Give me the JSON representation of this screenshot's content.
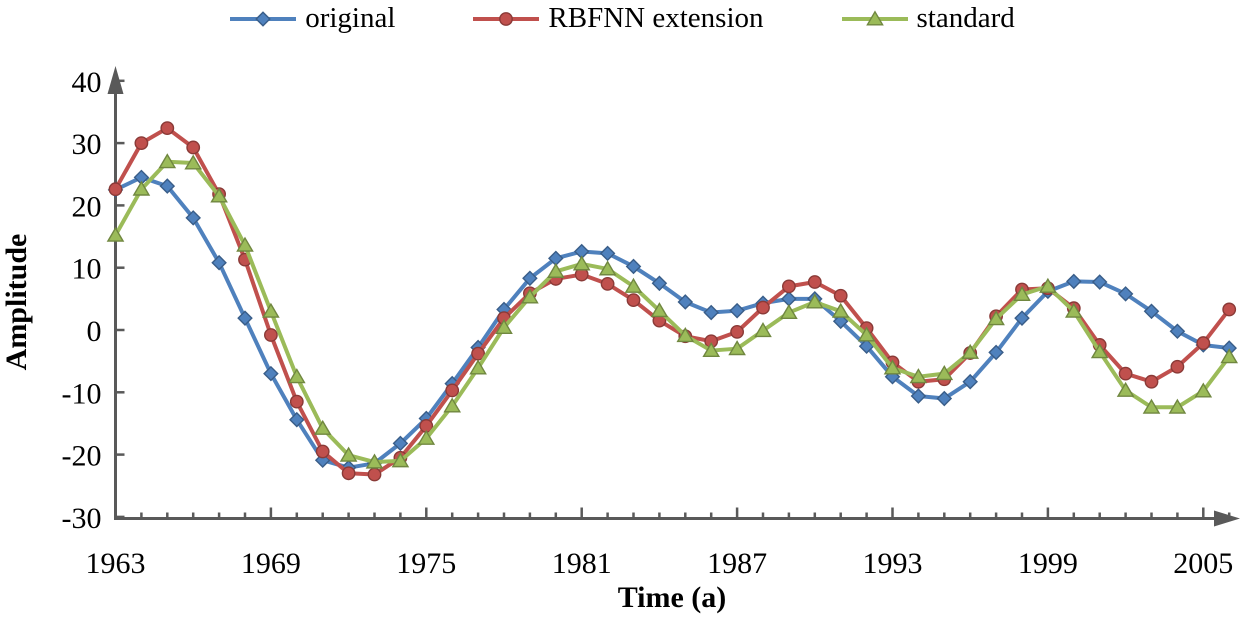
{
  "legend": [
    {
      "label": "original",
      "color": "#4F81BD",
      "marker": "diamond"
    },
    {
      "label": "RBFNN extension",
      "color": "#C0504D",
      "marker": "circle"
    },
    {
      "label": "standard",
      "color": "#9BBB59",
      "marker": "triangle"
    }
  ],
  "axis_color": "#595959",
  "chart_data": {
    "type": "line",
    "title": "",
    "xlabel": "Time (a)",
    "ylabel": "Amplitude",
    "x_start": 1963,
    "x_step": 1,
    "xlim": [
      1963,
      2006
    ],
    "ylim": [
      -30,
      40
    ],
    "grid": false,
    "legend_position": "top",
    "x_ticks_labeled": [
      1963,
      1969,
      1975,
      1981,
      1987,
      1993,
      1999,
      2005
    ],
    "y_ticks": [
      40,
      30,
      20,
      10,
      0,
      -10,
      -20,
      -30
    ],
    "series": [
      {
        "name": "original",
        "color": "#4F81BD",
        "marker": "diamond",
        "values": [
          22.5,
          24.5,
          23.1,
          18.0,
          10.8,
          1.9,
          -7.0,
          -14.4,
          -20.9,
          -22.1,
          -21.4,
          -18.2,
          -14.2,
          -8.6,
          -2.8,
          3.3,
          8.3,
          11.5,
          12.6,
          12.3,
          10.2,
          7.5,
          4.5,
          2.8,
          3.1,
          4.3,
          5.0,
          5.0,
          1.4,
          -2.6,
          -7.5,
          -10.6,
          -11.0,
          -8.3,
          -3.6,
          1.9,
          6.2,
          7.8,
          7.7,
          5.8,
          3.0,
          -0.2,
          -2.4,
          -2.9
        ]
      },
      {
        "name": "RBFNN extension",
        "color": "#C0504D",
        "marker": "circle",
        "values": [
          22.6,
          30.0,
          32.4,
          29.3,
          21.8,
          11.3,
          -0.8,
          -11.5,
          -19.5,
          -23.0,
          -23.2,
          -20.5,
          -15.4,
          -9.7,
          -3.8,
          1.9,
          5.9,
          8.2,
          8.9,
          7.4,
          4.8,
          1.5,
          -1.0,
          -1.8,
          -0.3,
          3.6,
          7.0,
          7.7,
          5.5,
          0.3,
          -5.2,
          -8.3,
          -7.9,
          -3.7,
          2.2,
          6.5,
          6.7,
          3.5,
          -2.4,
          -7.0,
          -8.3,
          -5.9,
          -2.1,
          3.3
        ]
      },
      {
        "name": "standard",
        "color": "#9BBB59",
        "marker": "triangle",
        "values": [
          15.2,
          22.6,
          27.0,
          26.8,
          21.5,
          13.6,
          3.0,
          -7.5,
          -15.8,
          -20.1,
          -21.2,
          -21.0,
          -17.4,
          -12.2,
          -6.1,
          0.4,
          5.3,
          9.4,
          10.6,
          9.8,
          7.0,
          3.1,
          -0.9,
          -3.3,
          -3.0,
          -0.1,
          2.8,
          4.5,
          3.0,
          -0.8,
          -6.1,
          -7.5,
          -7.0,
          -3.6,
          1.8,
          5.7,
          7.0,
          3.0,
          -3.5,
          -9.7,
          -12.4,
          -12.4,
          -9.8,
          -4.3
        ]
      }
    ]
  }
}
